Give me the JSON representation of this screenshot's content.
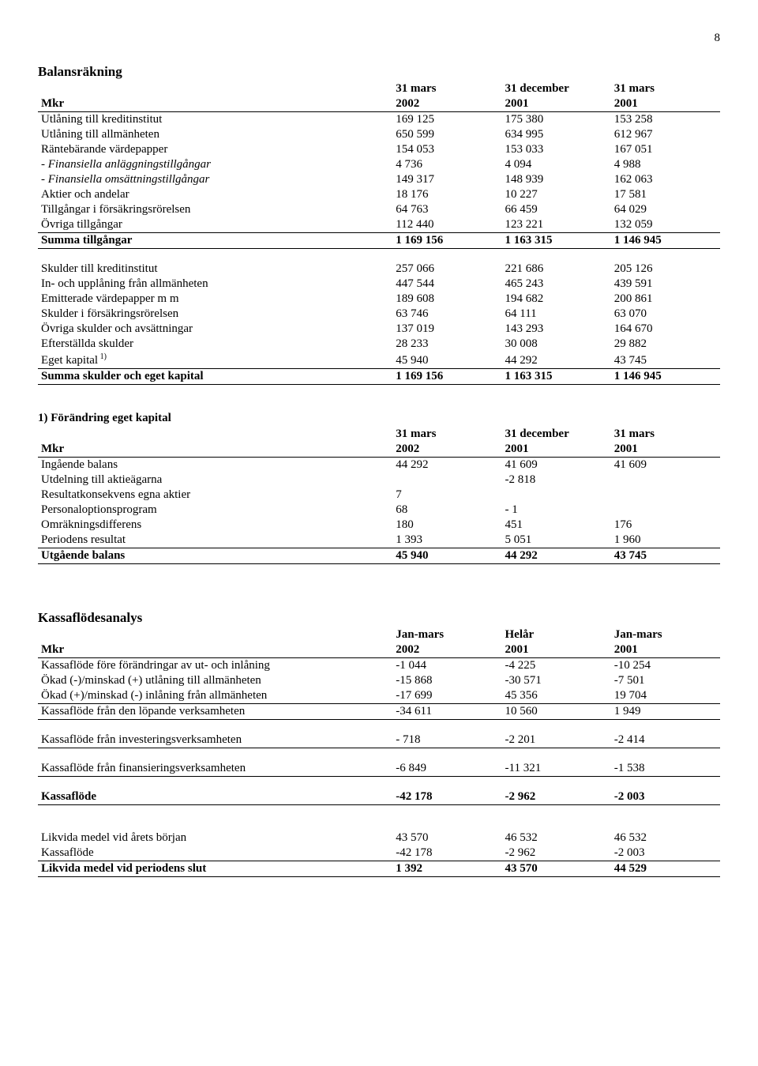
{
  "pageNumber": "8",
  "t1": {
    "title": "Balansräkning",
    "h1": [
      "",
      "31 mars",
      "31 december",
      "31 mars"
    ],
    "h2": [
      "Mkr",
      "2002",
      "2001",
      "2001"
    ],
    "rowsA": [
      {
        "l": "Utlåning till kreditinstitut",
        "v": [
          "169 125",
          "175 380",
          "153 258"
        ]
      },
      {
        "l": "Utlåning till allmänheten",
        "v": [
          "650 599",
          "634 995",
          "612 967"
        ]
      },
      {
        "l": "Räntebärande värdepapper",
        "v": [
          "154 053",
          "153 033",
          "167 051"
        ]
      },
      {
        "l": "- Finansiella anläggningstillgångar",
        "v": [
          "4 736",
          "4 094",
          "4 988"
        ],
        "italic": true
      },
      {
        "l": "- Finansiella omsättningstillgångar",
        "v": [
          "149 317",
          "148 939",
          "162 063"
        ],
        "italic": true
      },
      {
        "l": "Aktier och andelar",
        "v": [
          "18 176",
          "10 227",
          "17 581"
        ]
      },
      {
        "l": "Tillgångar i försäkringsrörelsen",
        "v": [
          "64 763",
          "66 459",
          "64 029"
        ]
      },
      {
        "l": "Övriga tillgångar",
        "v": [
          "112 440",
          "123 221",
          "132 059"
        ]
      }
    ],
    "sumA": {
      "l": "Summa tillgångar",
      "v": [
        "1 169 156",
        "1 163 315",
        "1 146 945"
      ]
    },
    "rowsB": [
      {
        "l": "Skulder till kreditinstitut",
        "v": [
          "257 066",
          "221 686",
          "205 126"
        ]
      },
      {
        "l": "In- och upplåning  från allmänheten",
        "v": [
          "447 544",
          "465 243",
          "439 591"
        ]
      },
      {
        "l": "Emitterade värdepapper m m",
        "v": [
          "189 608",
          "194 682",
          "200 861"
        ]
      },
      {
        "l": "Skulder i försäkringsrörelsen",
        "v": [
          "63 746",
          "64 111",
          "63 070"
        ]
      },
      {
        "l": "Övriga skulder och avsättningar",
        "v": [
          "137 019",
          "143 293",
          "164 670"
        ]
      },
      {
        "l": "Efterställda skulder",
        "v": [
          "28 233",
          "30 008",
          "29 882"
        ]
      },
      {
        "l": "Eget kapital",
        "sup": "1)",
        "v": [
          "45 940",
          "44 292",
          "43 745"
        ]
      }
    ],
    "sumB": {
      "l": "Summa skulder och eget kapital",
      "v": [
        "1 169 156",
        "1 163 315",
        "1 146 945"
      ]
    }
  },
  "t2": {
    "title": "1) Förändring eget kapital",
    "h1": [
      "",
      "31 mars",
      "31 december",
      "31 mars"
    ],
    "h2": [
      "Mkr",
      "2002",
      "2001",
      "2001"
    ],
    "rows": [
      {
        "l": "Ingående balans",
        "v": [
          "44 292",
          "41 609",
          "41 609"
        ]
      },
      {
        "l": "Utdelning till aktieägarna",
        "v": [
          "",
          "-2 818",
          ""
        ]
      },
      {
        "l": "Resultatkonsekvens egna aktier",
        "v": [
          "7",
          "",
          ""
        ]
      },
      {
        "l": "Personaloptionsprogram",
        "v": [
          "68",
          "- 1",
          ""
        ]
      },
      {
        "l": "Omräkningsdifferens",
        "v": [
          "180",
          "451",
          "176"
        ]
      },
      {
        "l": "Periodens resultat",
        "v": [
          "1 393",
          "5 051",
          "1 960"
        ]
      }
    ],
    "sum": {
      "l": "Utgående balans",
      "v": [
        "45 940",
        "44 292",
        "43 745"
      ]
    }
  },
  "t3": {
    "title": "Kassaflödesanalys",
    "h1": [
      "",
      "Jan-mars",
      "Helår",
      "Jan-mars"
    ],
    "h2": [
      "Mkr",
      "2002",
      "2001",
      "2001"
    ],
    "rowsA": [
      {
        "l": "Kassaflöde före förändringar av ut- och inlåning",
        "v": [
          "-1 044",
          "-4 225",
          "-10 254"
        ]
      },
      {
        "l": "Ökad (-)/minskad (+) utlåning till allmänheten",
        "v": [
          "-15 868",
          "-30 571",
          "-7 501"
        ]
      },
      {
        "l": "Ökad (+)/minskad (-) inlåning från allmänheten",
        "v": [
          "-17 699",
          "45 356",
          "19 704"
        ]
      }
    ],
    "sumA": {
      "l": "Kassaflöde från den löpande verksamheten",
      "v": [
        "-34 611",
        "10 560",
        "1 949"
      ]
    },
    "rowB": {
      "l": "Kassaflöde från investeringsverksamheten",
      "v": [
        "- 718",
        "-2 201",
        "-2 414"
      ]
    },
    "rowC": {
      "l": "Kassaflöde från finansieringsverksamheten",
      "v": [
        "-6 849",
        "-11 321",
        "-1 538"
      ]
    },
    "sumD": {
      "l": "Kassaflöde",
      "v": [
        "-42 178",
        "-2 962",
        "-2 003"
      ]
    },
    "rowsE": [
      {
        "l": "Likvida medel vid årets början",
        "v": [
          "43 570",
          "46 532",
          "46 532"
        ]
      },
      {
        "l": "Kassaflöde",
        "v": [
          "-42 178",
          "-2 962",
          "-2 003"
        ]
      }
    ],
    "sumE": {
      "l": "Likvida medel vid periodens slut",
      "v": [
        "1 392",
        "43 570",
        "44 529"
      ]
    }
  }
}
